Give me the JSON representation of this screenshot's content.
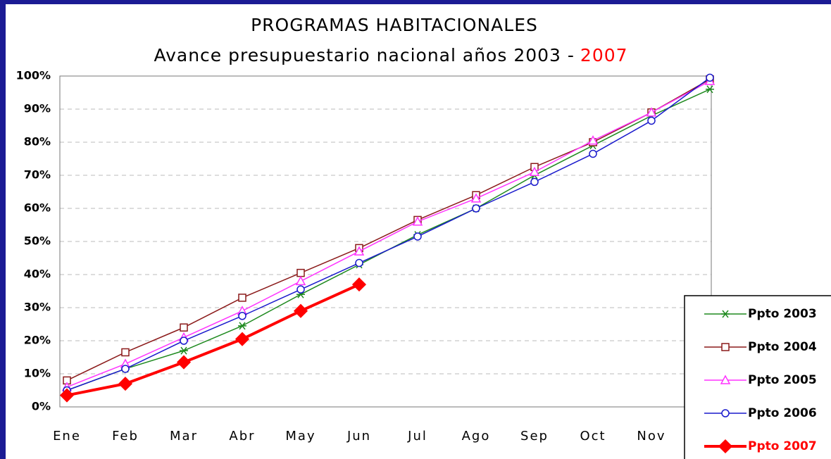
{
  "chart_data": {
    "type": "line",
    "title": "PROGRAMAS HABITACIONALES",
    "subtitle": [
      "Avance presupuestario nacional años 2003 -",
      "2007"
    ],
    "subtitle_colors": [
      "#000000",
      "#ff0000"
    ],
    "categories": [
      "Ene",
      "Feb",
      "Mar",
      "Abr",
      "May",
      "Jun",
      "Jul",
      "Ago",
      "Sep",
      "Oct",
      "Nov",
      null
    ],
    "series": [
      {
        "name": "Ppto 2003",
        "color": "#1f8a1f",
        "marker": "star",
        "line_width": 1.5,
        "values": [
          5,
          11.5,
          17,
          24.5,
          34,
          43,
          52,
          60,
          70,
          79,
          88,
          96
        ]
      },
      {
        "name": "Ppto 2004",
        "color": "#8b1a1a",
        "marker": "square",
        "line_width": 1.5,
        "values": [
          8,
          16.5,
          24,
          33,
          40.5,
          48,
          56.5,
          64,
          72.5,
          80,
          89,
          99
        ]
      },
      {
        "name": "Ppto 2005",
        "color": "#ff33ff",
        "marker": "triangle",
        "line_width": 1.5,
        "values": [
          6,
          13,
          21,
          29,
          38,
          47,
          56,
          63,
          71,
          80.5,
          89,
          98.5
        ]
      },
      {
        "name": "Ppto 2006",
        "color": "#1a1acc",
        "marker": "circle",
        "line_width": 1.5,
        "values": [
          5,
          11.5,
          20,
          27.5,
          35.5,
          43.5,
          51.5,
          60,
          68,
          76.5,
          86.5,
          99.5
        ]
      },
      {
        "name": "Ppto 2007",
        "color": "#ff0000",
        "marker": "diamond",
        "line_width": 4,
        "highlight": true,
        "values": [
          3.5,
          7,
          13.5,
          20.5,
          29,
          37,
          null,
          null,
          null,
          null,
          null,
          null
        ]
      }
    ],
    "ylim": [
      0,
      100
    ],
    "yticks": [
      {
        "value": 0,
        "label": "0%"
      },
      {
        "value": 10,
        "label": "10%"
      },
      {
        "value": 20,
        "label": "20%"
      },
      {
        "value": 30,
        "label": "30%"
      },
      {
        "value": 40,
        "label": "40%"
      },
      {
        "value": 50,
        "label": "50%"
      },
      {
        "value": 60,
        "label": "60%"
      },
      {
        "value": 70,
        "label": "70%"
      },
      {
        "value": 80,
        "label": "80%"
      },
      {
        "value": 90,
        "label": "90%"
      },
      {
        "value": 100,
        "label": "100%"
      }
    ],
    "grid": true,
    "legend": "lower-right"
  }
}
